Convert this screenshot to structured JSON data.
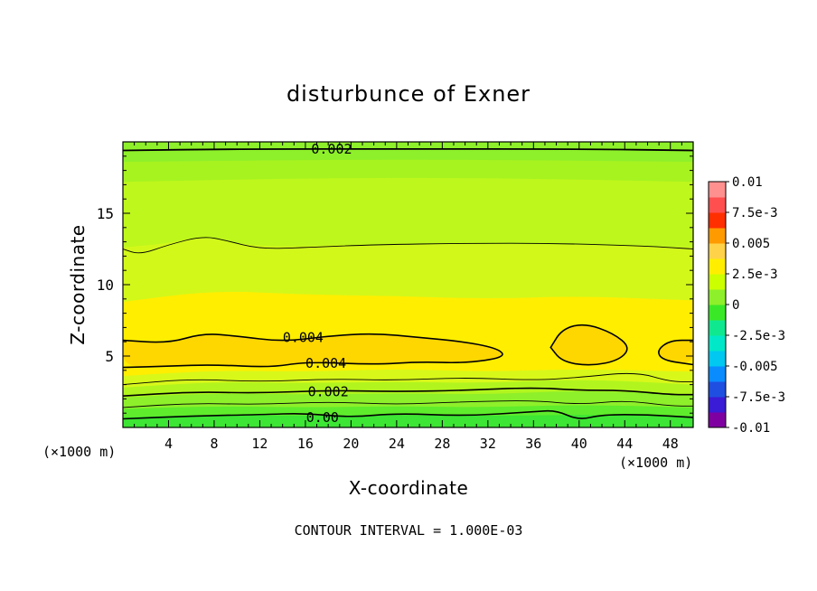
{
  "chart_data": {
    "type": "heatmap",
    "title": "disturbunce of Exner",
    "xlabel": "X-coordinate",
    "ylabel": "Z-coordinate",
    "x_unit_left": "(×1000 m)",
    "x_unit_right": "(×1000 m)",
    "footer": "CONTOUR INTERVAL = 1.000E-03",
    "xlim": [
      0,
      50
    ],
    "ylim": [
      0,
      20
    ],
    "x_ticks": [
      {
        "v": 4,
        "label": "4"
      },
      {
        "v": 8,
        "label": "8"
      },
      {
        "v": 12,
        "label": "12"
      },
      {
        "v": 16,
        "label": "16"
      },
      {
        "v": 20,
        "label": "20"
      },
      {
        "v": 24,
        "label": "24"
      },
      {
        "v": 28,
        "label": "28"
      },
      {
        "v": 32,
        "label": "32"
      },
      {
        "v": 36,
        "label": "36"
      },
      {
        "v": 40,
        "label": "40"
      },
      {
        "v": 44,
        "label": "44"
      },
      {
        "v": 48,
        "label": "48"
      }
    ],
    "y_ticks": [
      {
        "v": 5,
        "label": "5"
      },
      {
        "v": 10,
        "label": "10"
      },
      {
        "v": 15,
        "label": "15"
      }
    ],
    "colorbar": {
      "vmin": -0.01,
      "vmax": 0.01,
      "colors": [
        "#7f00a0",
        "#3a1bd6",
        "#1f4fe0",
        "#0a8cff",
        "#00c8f0",
        "#00e8c8",
        "#10e890",
        "#3be828",
        "#8ef02a",
        "#ccff00",
        "#ffee00",
        "#ffd24a",
        "#ff9a00",
        "#ff2f00",
        "#ff4f4f",
        "#ff9090"
      ],
      "labels": [
        {
          "v": 0.01,
          "label": "0.01"
        },
        {
          "v": 0.0075,
          "label": "7.5e-3"
        },
        {
          "v": 0.005,
          "label": "0.005"
        },
        {
          "v": 0.0025,
          "label": "2.5e-3"
        },
        {
          "v": 0,
          "label": "0"
        },
        {
          "v": -0.0025,
          "label": "-2.5e-3"
        },
        {
          "v": -0.005,
          "label": "-0.005"
        },
        {
          "v": -0.0075,
          "label": "-7.5e-3"
        },
        {
          "v": -0.01,
          "label": "-0.01"
        }
      ]
    },
    "bands": [
      {
        "color": "#3de534",
        "top": [
          [
            0,
            0.7
          ],
          [
            8,
            0.9
          ],
          [
            16,
            0.8
          ],
          [
            24,
            0.9
          ],
          [
            32,
            0.8
          ],
          [
            40,
            0.9
          ],
          [
            50,
            0.8
          ]
        ]
      },
      {
        "color": "#5fec2c",
        "top": [
          [
            0,
            1.3
          ],
          [
            8,
            1.5
          ],
          [
            16,
            1.4
          ],
          [
            24,
            1.5
          ],
          [
            32,
            1.4
          ],
          [
            40,
            1.6
          ],
          [
            50,
            1.4
          ]
        ]
      },
      {
        "color": "#8ef02a",
        "top": [
          [
            0,
            2.1
          ],
          [
            8,
            2.4
          ],
          [
            16,
            2.3
          ],
          [
            24,
            2.4
          ],
          [
            32,
            2.3
          ],
          [
            40,
            2.6
          ],
          [
            50,
            2.3
          ]
        ]
      },
      {
        "color": "#b2f51e",
        "top": [
          [
            0,
            2.8
          ],
          [
            8,
            3.2
          ],
          [
            16,
            3.1
          ],
          [
            24,
            3.2
          ],
          [
            32,
            3.1
          ],
          [
            40,
            3.4
          ],
          [
            50,
            3.0
          ]
        ]
      },
      {
        "color": "#d8f81a",
        "top": [
          [
            0,
            3.6
          ],
          [
            8,
            4.0
          ],
          [
            16,
            3.9
          ],
          [
            24,
            4.1
          ],
          [
            32,
            3.9
          ],
          [
            40,
            4.1
          ],
          [
            50,
            3.9
          ]
        ]
      },
      {
        "color": "#ffee00",
        "top": [
          [
            0,
            8.8
          ],
          [
            8,
            9.6
          ],
          [
            16,
            9.3
          ],
          [
            24,
            9.2
          ],
          [
            32,
            9.0
          ],
          [
            40,
            9.2
          ],
          [
            50,
            8.9
          ]
        ]
      },
      {
        "color": "#d2f81a",
        "top": [
          [
            0,
            12.6
          ],
          [
            4,
            12.9
          ],
          [
            7,
            13.4
          ],
          [
            12,
            12.6
          ],
          [
            20,
            12.8
          ],
          [
            30,
            12.9
          ],
          [
            40,
            12.8
          ],
          [
            50,
            12.6
          ]
        ]
      },
      {
        "color": "#bef71c",
        "top": [
          [
            0,
            17.2
          ],
          [
            12,
            17.4
          ],
          [
            25,
            17.5
          ],
          [
            38,
            17.4
          ],
          [
            50,
            17.2
          ]
        ]
      },
      {
        "color": "#a6f320",
        "top": [
          [
            0,
            18.6
          ],
          [
            25,
            18.8
          ],
          [
            50,
            18.6
          ]
        ]
      },
      {
        "color": "#8ef02a",
        "top": [
          [
            0,
            20
          ],
          [
            50,
            20
          ]
        ]
      }
    ],
    "warm_patches": [
      {
        "color": "#ffd700",
        "pts": [
          [
            0,
            6.1
          ],
          [
            4,
            5.9
          ],
          [
            7,
            6.6
          ],
          [
            10,
            6.4
          ],
          [
            14,
            6.0
          ],
          [
            18,
            6.4
          ],
          [
            22,
            6.6
          ],
          [
            26,
            6.3
          ],
          [
            30,
            6.0
          ],
          [
            33,
            5.5
          ],
          [
            33.5,
            4.9
          ],
          [
            30,
            4.5
          ],
          [
            26,
            4.6
          ],
          [
            22,
            4.4
          ],
          [
            16,
            4.6
          ],
          [
            13,
            4.2
          ],
          [
            8,
            4.4
          ],
          [
            4,
            4.3
          ],
          [
            0,
            4.2
          ]
        ]
      },
      {
        "color": "#ffd700",
        "pts": [
          [
            37.5,
            5.6
          ],
          [
            38.5,
            6.9
          ],
          [
            40.5,
            7.3
          ],
          [
            43,
            6.6
          ],
          [
            44.5,
            5.6
          ],
          [
            43.5,
            4.7
          ],
          [
            41,
            4.3
          ],
          [
            38.5,
            4.6
          ]
        ]
      },
      {
        "color": "#ffd700",
        "pts": [
          [
            50,
            6.1
          ],
          [
            48,
            6.1
          ],
          [
            46.8,
            5.4
          ],
          [
            47.3,
            4.7
          ],
          [
            50,
            4.4
          ]
        ]
      }
    ],
    "contours": [
      {
        "width": 1.8,
        "pts": [
          [
            0,
            19.4
          ],
          [
            10,
            19.5
          ],
          [
            25,
            19.5
          ],
          [
            40,
            19.5
          ],
          [
            50,
            19.4
          ]
        ]
      },
      {
        "width": 0.9,
        "pts": [
          [
            0,
            12.5
          ],
          [
            1.5,
            12.1
          ],
          [
            4,
            12.8
          ],
          [
            7,
            13.4
          ],
          [
            9,
            13.1
          ],
          [
            12,
            12.5
          ],
          [
            16,
            12.6
          ],
          [
            22,
            12.8
          ],
          [
            30,
            12.9
          ],
          [
            38,
            12.9
          ],
          [
            46,
            12.7
          ],
          [
            50,
            12.5
          ]
        ]
      },
      {
        "width": 1.6,
        "pts": [
          [
            0,
            6.1
          ],
          [
            4,
            5.9
          ],
          [
            7,
            6.6
          ],
          [
            10,
            6.4
          ],
          [
            14,
            6.0
          ],
          [
            18,
            6.4
          ],
          [
            22,
            6.6
          ],
          [
            26,
            6.3
          ],
          [
            30,
            6.0
          ],
          [
            33,
            5.5
          ],
          [
            33.5,
            4.9
          ],
          [
            30,
            4.5
          ],
          [
            26,
            4.6
          ],
          [
            22,
            4.4
          ],
          [
            16,
            4.6
          ],
          [
            13,
            4.2
          ],
          [
            8,
            4.4
          ],
          [
            4,
            4.3
          ],
          [
            0,
            4.2
          ]
        ]
      },
      {
        "width": 1.6,
        "closed": true,
        "pts": [
          [
            37.5,
            5.6
          ],
          [
            38.5,
            6.9
          ],
          [
            40.5,
            7.3
          ],
          [
            43,
            6.6
          ],
          [
            44.5,
            5.6
          ],
          [
            43.5,
            4.7
          ],
          [
            41,
            4.3
          ],
          [
            38.5,
            4.6
          ]
        ]
      },
      {
        "width": 1.6,
        "pts": [
          [
            50,
            6.1
          ],
          [
            48,
            6.1
          ],
          [
            46.8,
            5.4
          ],
          [
            47.3,
            4.7
          ],
          [
            50,
            4.4
          ]
        ]
      },
      {
        "width": 0.9,
        "pts": [
          [
            0,
            3.0
          ],
          [
            6,
            3.4
          ],
          [
            12,
            3.2
          ],
          [
            18,
            3.4
          ],
          [
            24,
            3.3
          ],
          [
            30,
            3.5
          ],
          [
            36,
            3.3
          ],
          [
            40,
            3.5
          ],
          [
            45,
            3.9
          ],
          [
            48,
            3.2
          ],
          [
            50,
            3.2
          ]
        ]
      },
      {
        "width": 1.6,
        "pts": [
          [
            0,
            2.2
          ],
          [
            6,
            2.5
          ],
          [
            12,
            2.4
          ],
          [
            18,
            2.6
          ],
          [
            24,
            2.5
          ],
          [
            30,
            2.6
          ],
          [
            36,
            2.8
          ],
          [
            40,
            2.6
          ],
          [
            44,
            2.6
          ],
          [
            48,
            2.3
          ],
          [
            50,
            2.3
          ]
        ]
      },
      {
        "width": 0.9,
        "pts": [
          [
            0,
            1.4
          ],
          [
            6,
            1.7
          ],
          [
            12,
            1.6
          ],
          [
            18,
            1.8
          ],
          [
            24,
            1.6
          ],
          [
            30,
            1.8
          ],
          [
            36,
            1.9
          ],
          [
            40,
            1.6
          ],
          [
            44,
            1.9
          ],
          [
            48,
            1.5
          ],
          [
            50,
            1.5
          ]
        ]
      },
      {
        "width": 1.6,
        "pts": [
          [
            0,
            0.6
          ],
          [
            6,
            0.8
          ],
          [
            12,
            0.9
          ],
          [
            16,
            1.0
          ],
          [
            20,
            0.7
          ],
          [
            24,
            1.0
          ],
          [
            30,
            0.8
          ],
          [
            36,
            1.1
          ],
          [
            38,
            1.2
          ],
          [
            40,
            0.5
          ],
          [
            42,
            0.9
          ],
          [
            46,
            0.9
          ],
          [
            50,
            0.7
          ]
        ]
      }
    ],
    "contour_labels": [
      {
        "x": 18.3,
        "y": 19.5,
        "text": "0.002"
      },
      {
        "x": 15.8,
        "y": 6.3,
        "text": "0.004"
      },
      {
        "x": 17.8,
        "y": 4.5,
        "text": "0.004"
      },
      {
        "x": 18.0,
        "y": 2.5,
        "text": "0.002"
      },
      {
        "x": 17.5,
        "y": 0.7,
        "text": "0.00"
      }
    ]
  }
}
